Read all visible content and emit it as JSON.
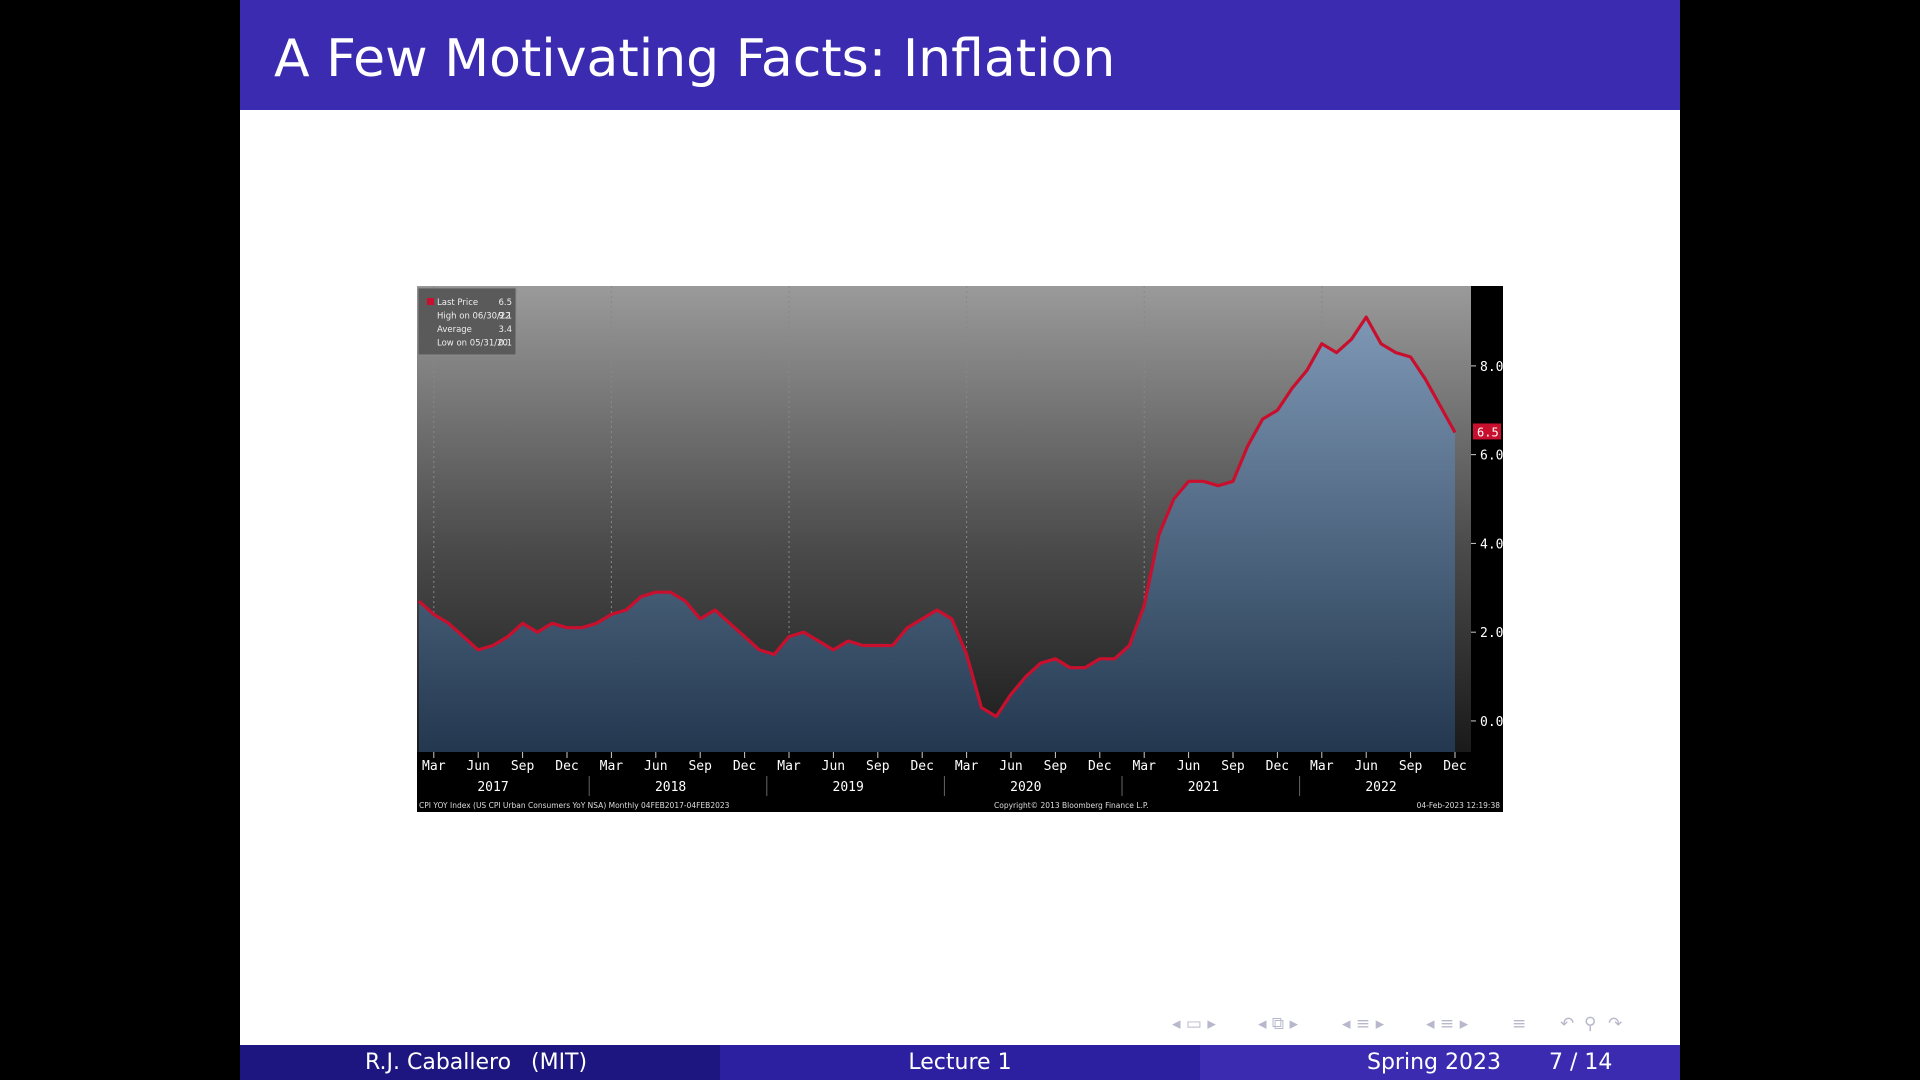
{
  "slide": {
    "title": "A Few Motivating Facts: Inflation"
  },
  "footer": {
    "author": "R.J. Caballero",
    "institution": "(MIT)",
    "lecture": "Lecture 1",
    "term": "Spring 2023",
    "page": "7 / 14"
  },
  "navigation": {
    "icons": [
      "nav-frame-icon",
      "nav-subsection-icon",
      "nav-section-icon",
      "nav-presentation-icon",
      "nav-toc-icon",
      "nav-back-icon",
      "nav-search-icon",
      "nav-forward-icon"
    ]
  },
  "colors": {
    "title_bar": "#3a2bb0",
    "footer_left": "#1e1680",
    "footer_mid": "#2c20a0",
    "footer_right": "#3a2bb0",
    "series_line": "#c8102e"
  },
  "chart_data": {
    "type": "area",
    "ylim": [
      -0.7,
      9.8
    ],
    "yticks": [
      "0.0",
      "2.0",
      "4.0",
      "6.0",
      "8.0"
    ],
    "ytick_values": [
      0,
      2,
      4,
      6,
      8
    ],
    "last_value_label": "6.5",
    "last_value": 6.5,
    "x_month_labels": [
      "Mar",
      "Jun",
      "Sep",
      "Dec",
      "Mar",
      "Jun",
      "Sep",
      "Dec",
      "Mar",
      "Jun",
      "Sep",
      "Dec",
      "Mar",
      "Jun",
      "Sep",
      "Dec",
      "Mar",
      "Jun",
      "Sep",
      "Dec",
      "Mar",
      "Jun",
      "Sep",
      "Dec"
    ],
    "x_year_labels": [
      "2017",
      "2018",
      "2019",
      "2020",
      "2021",
      "2022"
    ],
    "x_start": "2017-02",
    "x_end": "2022-12",
    "legend": {
      "items": [
        {
          "label": "Last Price",
          "value": "6.5"
        },
        {
          "label": "High on 06/30/22",
          "value": "9.1"
        },
        {
          "label": "Average",
          "value": "3.4"
        },
        {
          "label": "Low on 05/31/20",
          "value": "0.1"
        }
      ],
      "placement": "top-left"
    },
    "footer_left": "CPI YOY Index (US CPI Urban Consumers YoY NSA)  Monthly 04FEB2017-04FEB2023",
    "footer_center": "Copyright© 2013 Bloomberg Finance L.P.",
    "footer_right": "04-Feb-2023 12:19:38",
    "values": [
      2.7,
      2.4,
      2.2,
      1.9,
      1.6,
      1.7,
      1.9,
      2.2,
      2.0,
      2.2,
      2.1,
      2.1,
      2.2,
      2.4,
      2.5,
      2.8,
      2.9,
      2.9,
      2.7,
      2.3,
      2.5,
      2.2,
      1.9,
      1.6,
      1.5,
      1.9,
      2.0,
      1.8,
      1.6,
      1.8,
      1.7,
      1.7,
      1.7,
      2.1,
      2.3,
      2.5,
      2.3,
      1.5,
      0.3,
      0.1,
      0.6,
      1.0,
      1.3,
      1.4,
      1.2,
      1.2,
      1.4,
      1.4,
      1.7,
      2.6,
      4.2,
      5.0,
      5.4,
      5.4,
      5.3,
      5.4,
      6.2,
      6.8,
      7.0,
      7.5,
      7.9,
      8.5,
      8.3,
      8.6,
      9.1,
      8.5,
      8.3,
      8.2,
      7.7,
      7.1,
      6.5
    ]
  }
}
